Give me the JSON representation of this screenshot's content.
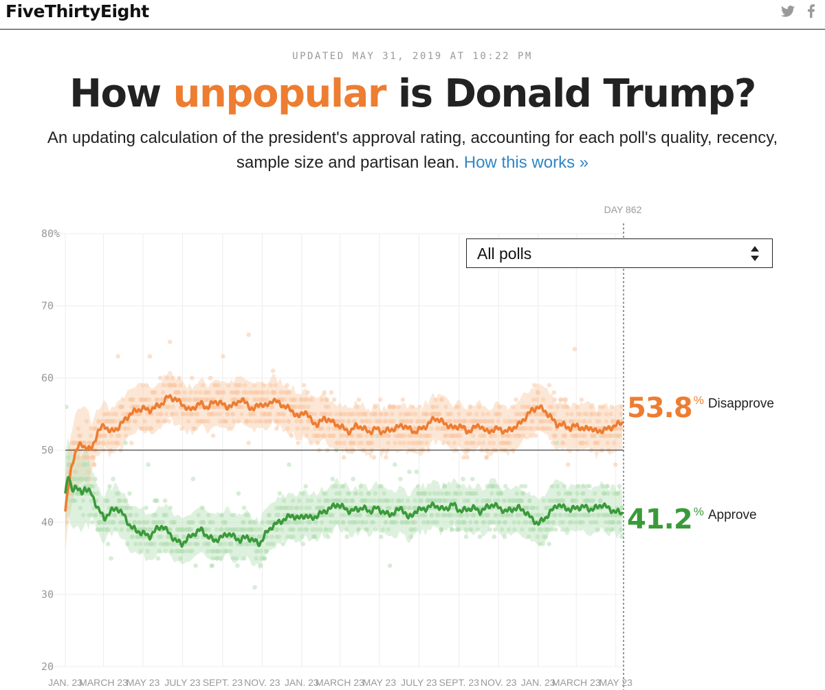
{
  "header": {
    "logo": "FiveThirtyEight",
    "share_icons": [
      "twitter-icon",
      "facebook-icon"
    ]
  },
  "updated": "UPDATED MAY 31, 2019 AT 10:22 PM",
  "title": {
    "before": "How ",
    "highlight": "unpopular",
    "after": " is Donald Trump?"
  },
  "subtitle": {
    "text": "An updating calculation of the president's approval rating, accounting for each poll's quality, recency, sample size and partisan lean.",
    "link": "How this works »"
  },
  "filter": {
    "selected": "All polls"
  },
  "readouts": {
    "disapprove": {
      "value": "53.8",
      "suffix": "%",
      "label": "Disapprove"
    },
    "approve": {
      "value": "41.2",
      "suffix": "%",
      "label": "Approve"
    }
  },
  "colors": {
    "disapprove": "#ed7d31",
    "approve": "#3a9a3a",
    "disapprove_light": "#f9c9a5",
    "approve_light": "#b5dfb5",
    "link": "#2f86c5"
  },
  "chart_data": {
    "type": "line",
    "ylim": [
      20,
      80
    ],
    "xlim": [
      0,
      862
    ],
    "y_ticks": [
      "80%",
      "70",
      "60",
      "50",
      "40",
      "30",
      "20"
    ],
    "y_tick_values": [
      80,
      70,
      60,
      50,
      40,
      30,
      20
    ],
    "x_tick_labels": [
      "JAN. 23",
      "MARCH 23",
      "MAY 23",
      "JULY 23",
      "SEPT. 23",
      "NOV. 23",
      "JAN. 23",
      "MARCH 23",
      "MAY 23",
      "JULY 23",
      "SEPT. 23",
      "NOV. 23",
      "JAN. 23",
      "MARCH 23",
      "MAY 23"
    ],
    "x_tick_days": [
      0,
      59,
      120,
      181,
      243,
      304,
      365,
      424,
      485,
      546,
      608,
      669,
      730,
      789,
      850
    ],
    "current_day_label": "DAY 862",
    "reference_line": 50,
    "series": [
      {
        "name": "Disapprove",
        "days": [
          0,
          5,
          10,
          15,
          20,
          25,
          30,
          40,
          50,
          60,
          70,
          80,
          90,
          100,
          110,
          120,
          130,
          140,
          150,
          160,
          170,
          180,
          190,
          200,
          210,
          220,
          230,
          240,
          250,
          260,
          270,
          280,
          290,
          300,
          310,
          320,
          330,
          340,
          350,
          360,
          370,
          380,
          390,
          400,
          410,
          420,
          430,
          440,
          450,
          460,
          470,
          480,
          490,
          500,
          510,
          520,
          530,
          540,
          550,
          560,
          570,
          580,
          590,
          600,
          610,
          620,
          630,
          640,
          650,
          660,
          670,
          680,
          690,
          700,
          710,
          720,
          730,
          740,
          750,
          760,
          770,
          780,
          790,
          800,
          810,
          820,
          830,
          840,
          850,
          862
        ],
        "values": [
          41.5,
          45.0,
          48.0,
          49.5,
          50.5,
          50.8,
          50.5,
          50.0,
          52.5,
          53.5,
          52.5,
          53.0,
          54.0,
          55.0,
          55.5,
          55.8,
          55.5,
          56.0,
          56.5,
          57.5,
          57.0,
          56.5,
          55.5,
          56.0,
          56.5,
          55.8,
          56.8,
          56.5,
          56.0,
          56.2,
          57.0,
          56.5,
          55.5,
          56.5,
          56.0,
          57.0,
          56.5,
          56.0,
          55.5,
          54.5,
          55.5,
          54.0,
          53.5,
          54.5,
          54.0,
          53.5,
          53.0,
          52.5,
          53.5,
          53.0,
          52.5,
          53.0,
          52.5,
          52.8,
          53.0,
          53.5,
          53.0,
          52.5,
          53.0,
          53.5,
          54.5,
          54.0,
          53.5,
          53.0,
          53.5,
          52.5,
          53.0,
          53.5,
          52.5,
          52.8,
          53.0,
          52.5,
          53.0,
          53.5,
          54.5,
          55.5,
          56.0,
          55.5,
          54.5,
          53.5,
          53.5,
          53.0,
          53.5,
          52.8,
          53.2,
          52.5,
          52.8,
          53.0,
          53.5,
          53.8
        ]
      },
      {
        "name": "Approve",
        "days": [
          0,
          5,
          10,
          15,
          20,
          25,
          30,
          40,
          50,
          60,
          70,
          80,
          90,
          100,
          110,
          120,
          130,
          140,
          150,
          160,
          170,
          180,
          190,
          200,
          210,
          220,
          230,
          240,
          250,
          260,
          270,
          280,
          290,
          300,
          310,
          320,
          330,
          340,
          350,
          360,
          370,
          380,
          390,
          400,
          410,
          420,
          430,
          440,
          450,
          460,
          470,
          480,
          490,
          500,
          510,
          520,
          530,
          540,
          550,
          560,
          570,
          580,
          590,
          600,
          610,
          620,
          630,
          640,
          650,
          660,
          670,
          680,
          690,
          700,
          710,
          720,
          730,
          740,
          750,
          760,
          770,
          780,
          790,
          800,
          810,
          820,
          830,
          840,
          850,
          862
        ],
        "values": [
          44.0,
          46.5,
          44.5,
          45.0,
          44.5,
          44.0,
          44.8,
          44.0,
          42.0,
          40.5,
          41.5,
          42.0,
          41.0,
          39.5,
          38.8,
          38.5,
          38.0,
          39.0,
          39.5,
          38.5,
          37.5,
          37.0,
          37.8,
          38.5,
          39.0,
          38.0,
          37.5,
          37.8,
          38.5,
          38.0,
          37.5,
          38.0,
          37.5,
          37.0,
          38.5,
          39.5,
          40.0,
          40.5,
          41.0,
          40.5,
          41.0,
          40.5,
          41.0,
          41.5,
          42.0,
          42.5,
          42.0,
          41.5,
          41.8,
          42.0,
          41.5,
          42.0,
          41.5,
          41.0,
          41.5,
          42.0,
          40.5,
          41.5,
          41.8,
          42.0,
          42.5,
          41.8,
          42.0,
          42.5,
          41.5,
          41.8,
          42.0,
          41.5,
          42.0,
          42.5,
          42.0,
          41.5,
          41.8,
          42.0,
          41.5,
          40.5,
          39.8,
          40.5,
          41.5,
          42.5,
          42.0,
          41.8,
          42.0,
          42.2,
          41.8,
          42.0,
          42.5,
          41.8,
          41.5,
          41.2
        ]
      }
    ]
  }
}
